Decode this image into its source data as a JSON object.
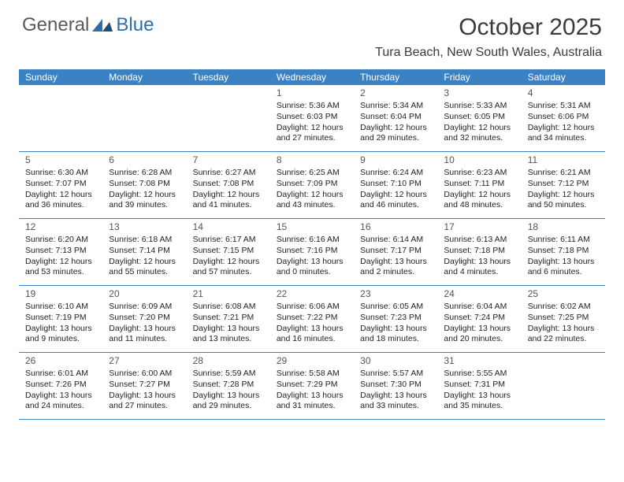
{
  "logo": {
    "general": "General",
    "blue": "Blue"
  },
  "title": "October 2025",
  "location": "Tura Beach, New South Wales, Australia",
  "colors": {
    "header_bg": "#3b82c4",
    "header_text": "#ffffff",
    "row_border": "#3b82c4",
    "text": "#222222",
    "title_color": "#3b3b3b"
  },
  "days_of_week": [
    "Sunday",
    "Monday",
    "Tuesday",
    "Wednesday",
    "Thursday",
    "Friday",
    "Saturday"
  ],
  "weeks": [
    [
      null,
      null,
      null,
      {
        "n": "1",
        "sr": "5:36 AM",
        "ss": "6:03 PM",
        "dh": "12",
        "dm": "27"
      },
      {
        "n": "2",
        "sr": "5:34 AM",
        "ss": "6:04 PM",
        "dh": "12",
        "dm": "29"
      },
      {
        "n": "3",
        "sr": "5:33 AM",
        "ss": "6:05 PM",
        "dh": "12",
        "dm": "32"
      },
      {
        "n": "4",
        "sr": "5:31 AM",
        "ss": "6:06 PM",
        "dh": "12",
        "dm": "34"
      }
    ],
    [
      {
        "n": "5",
        "sr": "6:30 AM",
        "ss": "7:07 PM",
        "dh": "12",
        "dm": "36"
      },
      {
        "n": "6",
        "sr": "6:28 AM",
        "ss": "7:08 PM",
        "dh": "12",
        "dm": "39"
      },
      {
        "n": "7",
        "sr": "6:27 AM",
        "ss": "7:08 PM",
        "dh": "12",
        "dm": "41"
      },
      {
        "n": "8",
        "sr": "6:25 AM",
        "ss": "7:09 PM",
        "dh": "12",
        "dm": "43"
      },
      {
        "n": "9",
        "sr": "6:24 AM",
        "ss": "7:10 PM",
        "dh": "12",
        "dm": "46"
      },
      {
        "n": "10",
        "sr": "6:23 AM",
        "ss": "7:11 PM",
        "dh": "12",
        "dm": "48"
      },
      {
        "n": "11",
        "sr": "6:21 AM",
        "ss": "7:12 PM",
        "dh": "12",
        "dm": "50"
      }
    ],
    [
      {
        "n": "12",
        "sr": "6:20 AM",
        "ss": "7:13 PM",
        "dh": "12",
        "dm": "53"
      },
      {
        "n": "13",
        "sr": "6:18 AM",
        "ss": "7:14 PM",
        "dh": "12",
        "dm": "55"
      },
      {
        "n": "14",
        "sr": "6:17 AM",
        "ss": "7:15 PM",
        "dh": "12",
        "dm": "57"
      },
      {
        "n": "15",
        "sr": "6:16 AM",
        "ss": "7:16 PM",
        "dh": "13",
        "dm": "0"
      },
      {
        "n": "16",
        "sr": "6:14 AM",
        "ss": "7:17 PM",
        "dh": "13",
        "dm": "2"
      },
      {
        "n": "17",
        "sr": "6:13 AM",
        "ss": "7:18 PM",
        "dh": "13",
        "dm": "4"
      },
      {
        "n": "18",
        "sr": "6:11 AM",
        "ss": "7:18 PM",
        "dh": "13",
        "dm": "6"
      }
    ],
    [
      {
        "n": "19",
        "sr": "6:10 AM",
        "ss": "7:19 PM",
        "dh": "13",
        "dm": "9"
      },
      {
        "n": "20",
        "sr": "6:09 AM",
        "ss": "7:20 PM",
        "dh": "13",
        "dm": "11"
      },
      {
        "n": "21",
        "sr": "6:08 AM",
        "ss": "7:21 PM",
        "dh": "13",
        "dm": "13"
      },
      {
        "n": "22",
        "sr": "6:06 AM",
        "ss": "7:22 PM",
        "dh": "13",
        "dm": "16"
      },
      {
        "n": "23",
        "sr": "6:05 AM",
        "ss": "7:23 PM",
        "dh": "13",
        "dm": "18"
      },
      {
        "n": "24",
        "sr": "6:04 AM",
        "ss": "7:24 PM",
        "dh": "13",
        "dm": "20"
      },
      {
        "n": "25",
        "sr": "6:02 AM",
        "ss": "7:25 PM",
        "dh": "13",
        "dm": "22"
      }
    ],
    [
      {
        "n": "26",
        "sr": "6:01 AM",
        "ss": "7:26 PM",
        "dh": "13",
        "dm": "24"
      },
      {
        "n": "27",
        "sr": "6:00 AM",
        "ss": "7:27 PM",
        "dh": "13",
        "dm": "27"
      },
      {
        "n": "28",
        "sr": "5:59 AM",
        "ss": "7:28 PM",
        "dh": "13",
        "dm": "29"
      },
      {
        "n": "29",
        "sr": "5:58 AM",
        "ss": "7:29 PM",
        "dh": "13",
        "dm": "31"
      },
      {
        "n": "30",
        "sr": "5:57 AM",
        "ss": "7:30 PM",
        "dh": "13",
        "dm": "33"
      },
      {
        "n": "31",
        "sr": "5:55 AM",
        "ss": "7:31 PM",
        "dh": "13",
        "dm": "35"
      },
      null
    ]
  ],
  "labels": {
    "sunrise": "Sunrise:",
    "sunset": "Sunset:",
    "daylight_prefix": "Daylight:",
    "hours_word": "hours",
    "and_word": "and",
    "minutes_word": "minutes."
  }
}
